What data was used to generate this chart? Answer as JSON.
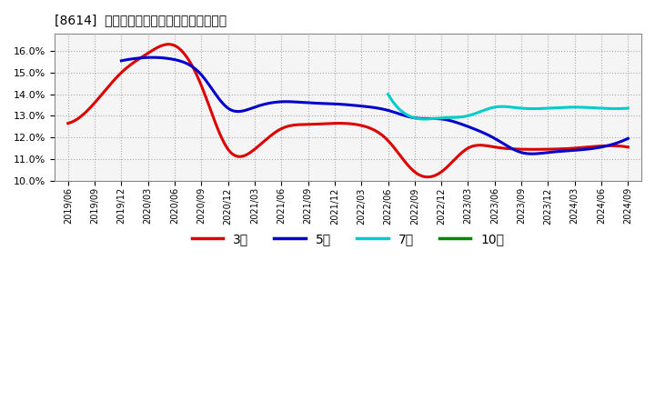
{
  "title": "[8614]  経常利益マージンの標準偏差の推移",
  "background_color": "#ffffff",
  "plot_bg_color": "#f5f5f5",
  "grid_color": "#aaaaaa",
  "ylim": [
    0.1,
    0.168
  ],
  "yticks": [
    0.1,
    0.11,
    0.12,
    0.13,
    0.14,
    0.15,
    0.16
  ],
  "series": {
    "3年": {
      "color": "#dd0000",
      "data": [
        [
          "2019-06",
          0.1265
        ],
        [
          "2019-09",
          0.136
        ],
        [
          "2019-12",
          0.15
        ],
        [
          "2020-03",
          0.159
        ],
        [
          "2020-06",
          0.1625
        ],
        [
          "2020-09",
          0.144
        ],
        [
          "2020-12",
          0.1145
        ],
        [
          "2021-03",
          0.1145
        ],
        [
          "2021-06",
          0.124
        ],
        [
          "2021-09",
          0.126
        ],
        [
          "2021-12",
          0.1265
        ],
        [
          "2022-03",
          0.1255
        ],
        [
          "2022-06",
          0.1185
        ],
        [
          "2022-09",
          0.104
        ],
        [
          "2022-12",
          0.104
        ],
        [
          "2023-03",
          0.115
        ],
        [
          "2023-06",
          0.1155
        ],
        [
          "2023-09",
          0.1145
        ],
        [
          "2023-12",
          0.1145
        ],
        [
          "2024-03",
          0.115
        ],
        [
          "2024-06",
          0.116
        ],
        [
          "2024-09",
          0.1155
        ]
      ]
    },
    "5年": {
      "color": "#0000cc",
      "data": [
        [
          "2019-06",
          null
        ],
        [
          "2019-09",
          null
        ],
        [
          "2019-12",
          0.1555
        ],
        [
          "2020-03",
          0.157
        ],
        [
          "2020-06",
          0.156
        ],
        [
          "2020-09",
          0.149
        ],
        [
          "2020-12",
          0.1335
        ],
        [
          "2021-03",
          0.134
        ],
        [
          "2021-06",
          0.1365
        ],
        [
          "2021-09",
          0.136
        ],
        [
          "2021-12",
          0.1355
        ],
        [
          "2022-03",
          0.1345
        ],
        [
          "2022-06",
          0.1325
        ],
        [
          "2022-09",
          0.129
        ],
        [
          "2022-12",
          0.1285
        ],
        [
          "2023-03",
          0.125
        ],
        [
          "2023-06",
          0.1195
        ],
        [
          "2023-09",
          0.113
        ],
        [
          "2023-12",
          0.113
        ],
        [
          "2024-03",
          0.114
        ],
        [
          "2024-06",
          0.1155
        ],
        [
          "2024-09",
          0.1195
        ]
      ]
    },
    "7年": {
      "color": "#00cccc",
      "data": [
        [
          "2019-06",
          null
        ],
        [
          "2019-09",
          null
        ],
        [
          "2019-12",
          null
        ],
        [
          "2020-03",
          null
        ],
        [
          "2020-06",
          null
        ],
        [
          "2020-09",
          null
        ],
        [
          "2020-12",
          null
        ],
        [
          "2021-03",
          null
        ],
        [
          "2021-06",
          null
        ],
        [
          "2021-09",
          null
        ],
        [
          "2021-12",
          null
        ],
        [
          "2022-03",
          null
        ],
        [
          "2022-06",
          0.14
        ],
        [
          "2022-09",
          0.129
        ],
        [
          "2022-12",
          0.129
        ],
        [
          "2023-03",
          0.13
        ],
        [
          "2023-06",
          0.134
        ],
        [
          "2023-09",
          0.1335
        ],
        [
          "2023-12",
          0.1335
        ],
        [
          "2024-03",
          0.134
        ],
        [
          "2024-06",
          0.1335
        ],
        [
          "2024-09",
          0.1335
        ]
      ]
    },
    "10年": {
      "color": "#008800",
      "data": [
        [
          "2019-06",
          null
        ],
        [
          "2019-09",
          null
        ],
        [
          "2019-12",
          null
        ],
        [
          "2020-03",
          null
        ],
        [
          "2020-06",
          null
        ],
        [
          "2020-09",
          null
        ],
        [
          "2020-12",
          null
        ],
        [
          "2021-03",
          null
        ],
        [
          "2021-06",
          null
        ],
        [
          "2021-09",
          null
        ],
        [
          "2021-12",
          null
        ],
        [
          "2022-03",
          null
        ],
        [
          "2022-06",
          null
        ],
        [
          "2022-09",
          null
        ],
        [
          "2022-12",
          null
        ],
        [
          "2023-03",
          null
        ],
        [
          "2023-06",
          null
        ],
        [
          "2023-09",
          null
        ],
        [
          "2023-12",
          null
        ],
        [
          "2024-03",
          null
        ],
        [
          "2024-06",
          null
        ],
        [
          "2024-09",
          null
        ]
      ]
    }
  },
  "x_labels": [
    "2019/06",
    "2019/09",
    "2019/12",
    "2020/03",
    "2020/06",
    "2020/09",
    "2020/12",
    "2021/03",
    "2021/06",
    "2021/09",
    "2021/12",
    "2022/03",
    "2022/06",
    "2022/09",
    "2022/12",
    "2023/03",
    "2023/06",
    "2023/09",
    "2023/12",
    "2024/03",
    "2024/06",
    "2024/09"
  ],
  "legend": {
    "labels": [
      "3年",
      "5年",
      "7年",
      "10年"
    ],
    "colors": [
      "#dd0000",
      "#0000cc",
      "#00cccc",
      "#008800"
    ]
  }
}
